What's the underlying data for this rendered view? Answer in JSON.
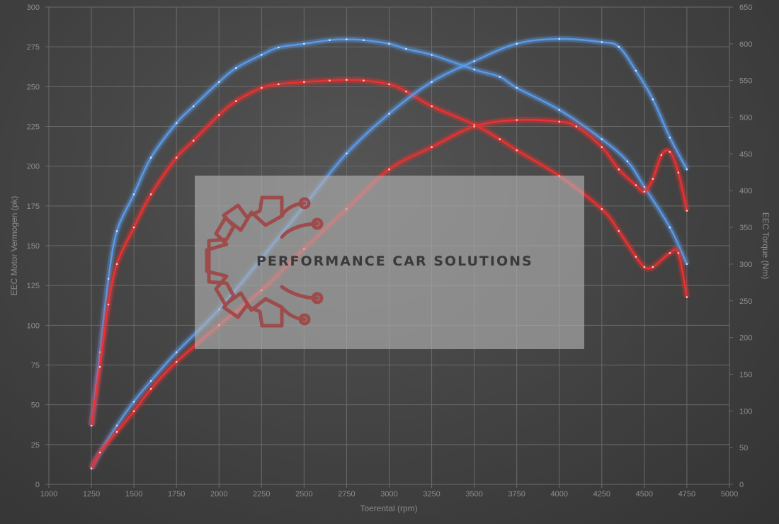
{
  "chart_data": {
    "type": "line",
    "xlabel": "Toerental (rpm)",
    "ylabel_left": "EEC Motor Vermogen (pk)",
    "ylabel_right": "EEC Torque (Nm)",
    "xlim": [
      1000,
      5000
    ],
    "ylim_left": [
      0,
      300
    ],
    "ylim_right": [
      0,
      650
    ],
    "x_ticks": [
      "1000",
      "1250",
      "1500",
      "1750",
      "2000",
      "2250",
      "2500",
      "2750",
      "3000",
      "3250",
      "3500",
      "3750",
      "4000",
      "4250",
      "4500",
      "4750",
      "5000"
    ],
    "y_left_ticks": [
      "0",
      "25",
      "50",
      "75",
      "100",
      "125",
      "150",
      "175",
      "200",
      "225",
      "250",
      "275",
      "300"
    ],
    "y_right_ticks": [
      "0",
      "50",
      "100",
      "150",
      "200",
      "250",
      "300",
      "350",
      "400",
      "450",
      "500",
      "550",
      "600",
      "650"
    ],
    "grid": true,
    "series": [
      {
        "axis": "right",
        "color": "#5a9ae8",
        "points": [
          [
            1250,
            80
          ],
          [
            1300,
            180
          ],
          [
            1350,
            280
          ],
          [
            1400,
            345
          ],
          [
            1500,
            395
          ],
          [
            1600,
            445
          ],
          [
            1750,
            492
          ],
          [
            1850,
            515
          ],
          [
            2000,
            548
          ],
          [
            2100,
            567
          ],
          [
            2250,
            585
          ],
          [
            2350,
            595
          ],
          [
            2500,
            600
          ],
          [
            2650,
            605
          ],
          [
            2750,
            606
          ],
          [
            2850,
            605
          ],
          [
            3000,
            600
          ],
          [
            3100,
            593
          ],
          [
            3250,
            585
          ],
          [
            3500,
            565
          ],
          [
            3650,
            555
          ],
          [
            3750,
            540
          ],
          [
            4000,
            510
          ],
          [
            4250,
            470
          ],
          [
            4400,
            440
          ],
          [
            4500,
            405
          ],
          [
            4650,
            350
          ],
          [
            4750,
            300
          ]
        ]
      },
      {
        "axis": "right",
        "color": "#ee3030",
        "points": [
          [
            1250,
            80
          ],
          [
            1300,
            160
          ],
          [
            1350,
            245
          ],
          [
            1400,
            300
          ],
          [
            1500,
            350
          ],
          [
            1600,
            395
          ],
          [
            1750,
            445
          ],
          [
            1850,
            468
          ],
          [
            2000,
            503
          ],
          [
            2100,
            522
          ],
          [
            2250,
            540
          ],
          [
            2350,
            545
          ],
          [
            2500,
            548
          ],
          [
            2650,
            550
          ],
          [
            2750,
            551
          ],
          [
            2850,
            550
          ],
          [
            3000,
            545
          ],
          [
            3100,
            535
          ],
          [
            3250,
            515
          ],
          [
            3500,
            490
          ],
          [
            3650,
            470
          ],
          [
            3750,
            455
          ],
          [
            4000,
            420
          ],
          [
            4250,
            375
          ],
          [
            4350,
            345
          ],
          [
            4450,
            310
          ],
          [
            4500,
            296
          ],
          [
            4550,
            296
          ],
          [
            4650,
            315
          ],
          [
            4700,
            315
          ],
          [
            4750,
            255
          ]
        ]
      },
      {
        "axis": "left",
        "color": "#5a9ae8",
        "points": [
          [
            1250,
            10
          ],
          [
            1300,
            20
          ],
          [
            1400,
            37
          ],
          [
            1500,
            52
          ],
          [
            1600,
            65
          ],
          [
            1750,
            83
          ],
          [
            2000,
            110
          ],
          [
            2250,
            142
          ],
          [
            2500,
            175
          ],
          [
            2750,
            208
          ],
          [
            3000,
            233
          ],
          [
            3250,
            253
          ],
          [
            3500,
            266
          ],
          [
            3750,
            277
          ],
          [
            4000,
            280
          ],
          [
            4250,
            278
          ],
          [
            4350,
            275
          ],
          [
            4450,
            260
          ],
          [
            4550,
            242
          ],
          [
            4650,
            218
          ],
          [
            4750,
            198
          ]
        ]
      },
      {
        "axis": "left",
        "color": "#ee3030",
        "points": [
          [
            1250,
            10
          ],
          [
            1300,
            20
          ],
          [
            1400,
            33
          ],
          [
            1500,
            46
          ],
          [
            1600,
            60
          ],
          [
            1750,
            77
          ],
          [
            2000,
            100
          ],
          [
            2250,
            122
          ],
          [
            2500,
            148
          ],
          [
            2750,
            173
          ],
          [
            3000,
            198
          ],
          [
            3250,
            212
          ],
          [
            3500,
            225
          ],
          [
            3750,
            229
          ],
          [
            4000,
            228
          ],
          [
            4100,
            225
          ],
          [
            4250,
            212
          ],
          [
            4350,
            198
          ],
          [
            4450,
            188
          ],
          [
            4500,
            184
          ],
          [
            4550,
            192
          ],
          [
            4600,
            207
          ],
          [
            4650,
            209
          ],
          [
            4700,
            196
          ],
          [
            4750,
            172
          ]
        ]
      }
    ]
  },
  "logo": {
    "text": "PERFORMANCE CAR SOLUTIONS",
    "logo_color": "#a04040"
  }
}
